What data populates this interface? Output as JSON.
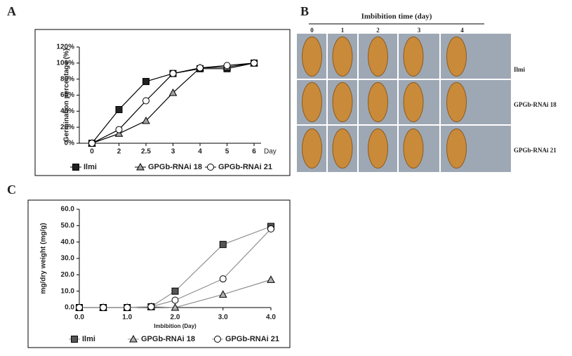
{
  "panel_labels": [
    "A",
    "B",
    "C"
  ],
  "photo_panel": {
    "title": "Imbibition time (day)",
    "columns": [
      "0",
      "1",
      "2",
      "3",
      "4"
    ],
    "rows": [
      "Ilmi",
      "GPGb-RNAi 18",
      "GPGb-RNAi 21"
    ]
  },
  "chart_data": [
    {
      "type": "line",
      "y_label": "Germination percentage (%)",
      "x_label": "Day",
      "categories": [
        "0",
        "2",
        "2.5",
        "3",
        "4",
        "5",
        "6"
      ],
      "ylim": [
        0,
        120
      ],
      "yticks": [
        {
          "value": 0,
          "label": "0%"
        },
        {
          "value": 20,
          "label": "20%"
        },
        {
          "value": 40,
          "label": "40%"
        },
        {
          "value": 60,
          "label": "60%"
        },
        {
          "value": 80,
          "label": "80%"
        },
        {
          "value": 100,
          "label": "100%"
        },
        {
          "value": 120,
          "label": "120%"
        }
      ],
      "line_color": "#000000",
      "series": [
        {
          "name": "Ilmi",
          "marker": "square",
          "color": "#222222",
          "values": [
            0,
            42,
            77,
            87,
            93,
            93,
            100
          ]
        },
        {
          "name": "GPGb-RNAi 18",
          "marker": "triangle",
          "color": "#a0a0a0",
          "values": [
            0,
            12,
            28,
            63,
            94,
            95,
            100
          ]
        },
        {
          "name": "GPGb-RNAi 21",
          "marker": "circle",
          "color": "#ffffff",
          "values": [
            0,
            17,
            53,
            87,
            94,
            97,
            100
          ]
        }
      ]
    },
    {
      "type": "line",
      "y_label": "mg/dry weight (mg/g)",
      "x_label": "Imbibition (Day)",
      "x": [
        0,
        0.5,
        1,
        1.5,
        2,
        3,
        4
      ],
      "xlim": [
        0,
        4
      ],
      "xticks": [
        {
          "value": 0,
          "label": "0.0"
        },
        {
          "value": 1,
          "label": "1.0"
        },
        {
          "value": 2,
          "label": "2.0"
        },
        {
          "value": 3,
          "label": "3.0"
        },
        {
          "value": 4,
          "label": "4.0"
        }
      ],
      "ylim": [
        0,
        60
      ],
      "yticks": [
        {
          "value": 0,
          "label": "0.0"
        },
        {
          "value": 10,
          "label": "10.0"
        },
        {
          "value": 20,
          "label": "20.0"
        },
        {
          "value": 30,
          "label": "30.0"
        },
        {
          "value": 40,
          "label": "40.0"
        },
        {
          "value": 50,
          "label": "50.0"
        },
        {
          "value": 60,
          "label": "60.0"
        }
      ],
      "line_color": "#909090",
      "series": [
        {
          "name": "Ilmi",
          "marker": "square",
          "color": "#555555",
          "values": [
            0,
            0,
            0,
            0.5,
            10,
            38.5,
            49.5
          ]
        },
        {
          "name": "GPGb-RNAi 18",
          "marker": "triangle",
          "color": "#b0b0b0",
          "values": [
            0,
            0,
            0,
            0.5,
            0,
            8,
            17
          ]
        },
        {
          "name": "GPGb-RNAi 21",
          "marker": "circle",
          "color": "#ffffff",
          "values": [
            0,
            0,
            0,
            0.5,
            4.5,
            17.5,
            48
          ]
        }
      ]
    }
  ]
}
